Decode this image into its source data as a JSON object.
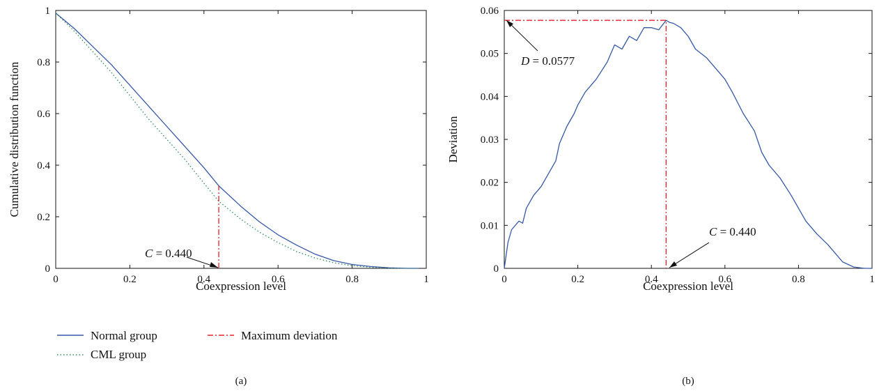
{
  "figure": {
    "legend": {
      "entries": [
        {
          "label": "Normal group",
          "style": "solid",
          "color": "#3557a8"
        },
        {
          "label": "CML group",
          "style": "dotted",
          "color": "#2e8b57"
        },
        {
          "label": "Maximum deviation",
          "style": "dashdot",
          "color": "#e8202a"
        }
      ]
    }
  },
  "chart_data": [
    {
      "panel_label": "(a)",
      "type": "line",
      "xlabel": "Coexpression level",
      "ylabel": "Cumulative distribution function",
      "xlim": [
        0,
        1
      ],
      "ylim": [
        0,
        1
      ],
      "xticks": [
        "0",
        "0.2",
        "0.4",
        "0.6",
        "0.8",
        "1"
      ],
      "yticks": [
        "0",
        "0.2",
        "0.4",
        "0.6",
        "0.8",
        "1"
      ],
      "grid": false,
      "series": [
        {
          "name": "Normal group",
          "color": "#3557a8",
          "style": "solid",
          "x": [
            0,
            0.05,
            0.1,
            0.15,
            0.2,
            0.25,
            0.3,
            0.35,
            0.4,
            0.44,
            0.5,
            0.55,
            0.6,
            0.65,
            0.7,
            0.75,
            0.8,
            0.85,
            0.9,
            0.95,
            0.98
          ],
          "y": [
            0.99,
            0.93,
            0.86,
            0.79,
            0.71,
            0.63,
            0.55,
            0.47,
            0.39,
            0.32,
            0.24,
            0.18,
            0.13,
            0.09,
            0.055,
            0.03,
            0.015,
            0.007,
            0.002,
            0.0,
            0.0
          ]
        },
        {
          "name": "CML group",
          "color": "#2e8b57",
          "style": "dotted",
          "x": [
            0,
            0.05,
            0.1,
            0.15,
            0.2,
            0.25,
            0.3,
            0.35,
            0.4,
            0.44,
            0.5,
            0.55,
            0.6,
            0.65,
            0.7,
            0.75,
            0.8,
            0.85,
            0.9,
            0.95,
            0.98
          ],
          "y": [
            0.99,
            0.92,
            0.84,
            0.76,
            0.67,
            0.58,
            0.5,
            0.42,
            0.33,
            0.26,
            0.19,
            0.14,
            0.1,
            0.065,
            0.04,
            0.022,
            0.01,
            0.004,
            0.001,
            0.0,
            0.0
          ]
        },
        {
          "name": "Maximum deviation",
          "color": "#e8202a",
          "style": "dashdot",
          "x": [
            0.44,
            0.44
          ],
          "y": [
            0.0,
            0.32
          ]
        }
      ],
      "annotations": [
        {
          "text": "C = 0.440",
          "arrow_to": {
            "x": 0.44,
            "y": 0.0
          }
        }
      ]
    },
    {
      "panel_label": "(b)",
      "type": "line",
      "xlabel": "Coexpression level",
      "ylabel": "Deviation",
      "xlim": [
        0,
        1
      ],
      "ylim": [
        0,
        0.06
      ],
      "xticks": [
        "0",
        "0.2",
        "0.4",
        "0.6",
        "0.8",
        "1"
      ],
      "yticks": [
        "0",
        "0.01",
        "0.02",
        "0.03",
        "0.04",
        "0.05",
        "0.06"
      ],
      "grid": false,
      "series": [
        {
          "name": "Deviation",
          "color": "#3557a8",
          "style": "solid",
          "x": [
            0,
            0.01,
            0.02,
            0.04,
            0.05,
            0.06,
            0.08,
            0.1,
            0.12,
            0.14,
            0.15,
            0.17,
            0.19,
            0.2,
            0.22,
            0.25,
            0.28,
            0.3,
            0.32,
            0.34,
            0.36,
            0.38,
            0.4,
            0.42,
            0.44,
            0.45,
            0.46,
            0.48,
            0.5,
            0.52,
            0.55,
            0.58,
            0.6,
            0.62,
            0.65,
            0.68,
            0.7,
            0.72,
            0.75,
            0.78,
            0.8,
            0.82,
            0.85,
            0.88,
            0.9,
            0.92,
            0.95,
            0.98,
            1.0
          ],
          "y": [
            0.0,
            0.006,
            0.009,
            0.011,
            0.0105,
            0.014,
            0.017,
            0.019,
            0.022,
            0.025,
            0.029,
            0.033,
            0.036,
            0.038,
            0.041,
            0.044,
            0.048,
            0.052,
            0.051,
            0.054,
            0.053,
            0.056,
            0.056,
            0.0555,
            0.0577,
            0.0572,
            0.057,
            0.056,
            0.054,
            0.051,
            0.049,
            0.046,
            0.044,
            0.041,
            0.036,
            0.032,
            0.027,
            0.024,
            0.021,
            0.017,
            0.014,
            0.011,
            0.008,
            0.0055,
            0.0035,
            0.0015,
            0.0003,
            0.0,
            0.0
          ]
        },
        {
          "name": "Maximum deviation",
          "color": "#e8202a",
          "style": "dashdot",
          "x": [
            0.0,
            0.44,
            0.44
          ],
          "y": [
            0.0577,
            0.0577,
            0.0
          ]
        }
      ],
      "annotations": [
        {
          "text": "D = 0.0577",
          "arrow_to": {
            "x": 0.0,
            "y": 0.0577
          }
        },
        {
          "text": "C = 0.440",
          "arrow_to": {
            "x": 0.44,
            "y": 0.0
          }
        }
      ]
    }
  ]
}
